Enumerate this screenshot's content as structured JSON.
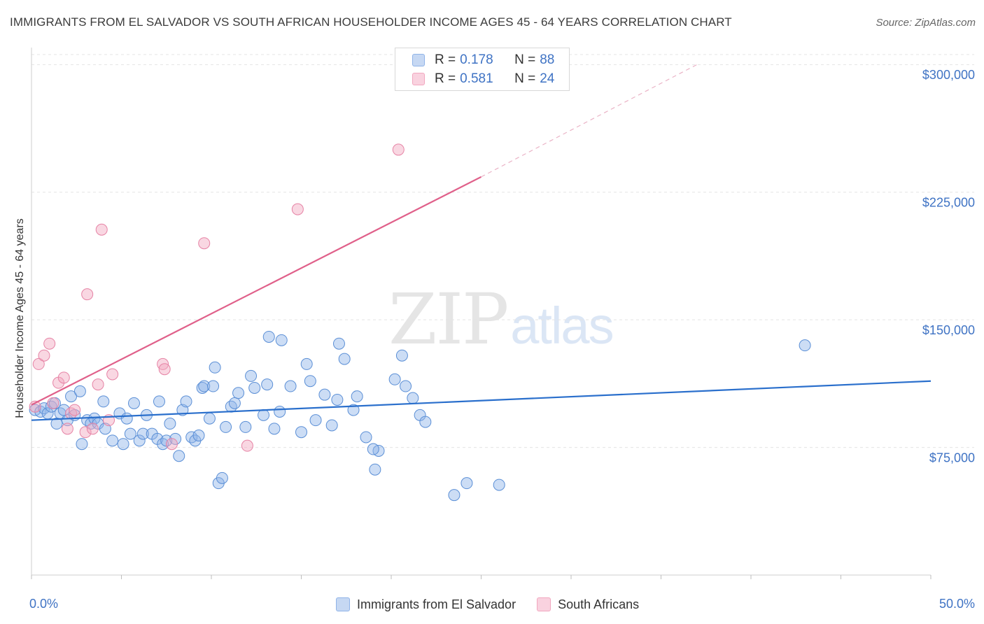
{
  "header": {
    "title": "IMMIGRANTS FROM EL SALVADOR VS SOUTH AFRICAN HOUSEHOLDER INCOME AGES 45 - 64 YEARS CORRELATION CHART",
    "source": "Source: ZipAtlas.com"
  },
  "watermark": {
    "zip": "ZIP",
    "atlas": "atlas"
  },
  "legend_top": [
    {
      "r_label": "R =",
      "r_value": "0.178",
      "n_label": "N =",
      "n_value": "88",
      "color": "#8fb3e8"
    },
    {
      "r_label": "R =",
      "r_value": "0.581",
      "n_label": "N =",
      "n_value": "24",
      "color": "#f2a7bf"
    }
  ],
  "chart_data": {
    "type": "scatter",
    "ylabel": "Householder Income Ages 45 - 64 years",
    "xlim": [
      0,
      50
    ],
    "ylim": [
      0,
      310000
    ],
    "y_ticks": [
      {
        "value": 75000,
        "label": "$75,000"
      },
      {
        "value": 150000,
        "label": "$150,000"
      },
      {
        "value": 225000,
        "label": "$225,000"
      },
      {
        "value": 300000,
        "label": "$300,000"
      }
    ],
    "x_tick_labels": {
      "min": "0.0%",
      "max": "50.0%"
    },
    "x_minor_ticks": [
      0,
      5,
      10,
      15,
      20,
      25,
      30,
      35,
      40,
      45,
      50
    ],
    "grid": "horizontal-dashed",
    "legend_position": "bottom",
    "series": [
      {
        "name": "Immigrants from El Salvador",
        "color": "#8fb3e8",
        "stroke": "#5b8fd6",
        "trend": {
          "x": [
            0,
            50
          ],
          "y": [
            91000,
            114000
          ],
          "color": "#2a6fcc"
        },
        "points": [
          [
            0.2,
            97000
          ],
          [
            0.5,
            96000
          ],
          [
            0.7,
            98000
          ],
          [
            0.9,
            95000
          ],
          [
            1.1,
            99000
          ],
          [
            1.3,
            101000
          ],
          [
            1.4,
            89000
          ],
          [
            1.6,
            95000
          ],
          [
            1.8,
            97000
          ],
          [
            2.0,
            91000
          ],
          [
            2.2,
            105000
          ],
          [
            2.4,
            94000
          ],
          [
            2.7,
            108000
          ],
          [
            2.8,
            77000
          ],
          [
            3.1,
            91000
          ],
          [
            3.3,
            89000
          ],
          [
            3.5,
            92000
          ],
          [
            3.7,
            89000
          ],
          [
            4.0,
            102000
          ],
          [
            4.1,
            86000
          ],
          [
            4.5,
            79000
          ],
          [
            4.9,
            95000
          ],
          [
            5.1,
            77000
          ],
          [
            5.3,
            92000
          ],
          [
            5.5,
            83000
          ],
          [
            5.7,
            101000
          ],
          [
            6.0,
            79000
          ],
          [
            6.2,
            83000
          ],
          [
            6.4,
            94000
          ],
          [
            6.7,
            83000
          ],
          [
            7.0,
            80000
          ],
          [
            7.1,
            102000
          ],
          [
            7.3,
            77000
          ],
          [
            7.5,
            79000
          ],
          [
            7.7,
            89000
          ],
          [
            8.0,
            80000
          ],
          [
            8.2,
            70000
          ],
          [
            8.4,
            97000
          ],
          [
            8.6,
            102000
          ],
          [
            8.9,
            81000
          ],
          [
            9.1,
            79000
          ],
          [
            9.3,
            82000
          ],
          [
            9.5,
            110000
          ],
          [
            9.6,
            111000
          ],
          [
            9.9,
            92000
          ],
          [
            10.1,
            111000
          ],
          [
            10.2,
            122000
          ],
          [
            10.4,
            54000
          ],
          [
            10.6,
            57000
          ],
          [
            10.8,
            87000
          ],
          [
            11.1,
            99000
          ],
          [
            11.3,
            101000
          ],
          [
            11.5,
            107000
          ],
          [
            11.9,
            87000
          ],
          [
            12.2,
            117000
          ],
          [
            12.4,
            110000
          ],
          [
            12.9,
            94000
          ],
          [
            13.1,
            112000
          ],
          [
            13.2,
            140000
          ],
          [
            13.5,
            86000
          ],
          [
            13.8,
            96000
          ],
          [
            13.9,
            138000
          ],
          [
            14.4,
            111000
          ],
          [
            15.0,
            84000
          ],
          [
            15.3,
            124000
          ],
          [
            15.5,
            114000
          ],
          [
            15.8,
            91000
          ],
          [
            16.3,
            106000
          ],
          [
            16.7,
            88000
          ],
          [
            17.0,
            103000
          ],
          [
            17.1,
            136000
          ],
          [
            17.4,
            127000
          ],
          [
            17.9,
            97000
          ],
          [
            18.1,
            105000
          ],
          [
            18.6,
            81000
          ],
          [
            19.3,
            73000
          ],
          [
            19.0,
            74000
          ],
          [
            19.1,
            62000
          ],
          [
            20.2,
            115000
          ],
          [
            20.6,
            129000
          ],
          [
            20.8,
            111000
          ],
          [
            21.2,
            104000
          ],
          [
            21.6,
            94000
          ],
          [
            21.9,
            90000
          ],
          [
            23.5,
            47000
          ],
          [
            24.2,
            54000
          ],
          [
            26.0,
            53000
          ],
          [
            43.0,
            135000
          ]
        ]
      },
      {
        "name": "South Africans",
        "color": "#f2a7bf",
        "stroke": "#e683a5",
        "trend": {
          "x": [
            0,
            25
          ],
          "y": [
            100000,
            234000
          ],
          "dashed_to": {
            "x": 37,
            "y": 300000
          },
          "color": "#e0608a"
        },
        "points": [
          [
            0.2,
            99000
          ],
          [
            0.4,
            124000
          ],
          [
            0.7,
            129000
          ],
          [
            1.0,
            136000
          ],
          [
            1.2,
            101000
          ],
          [
            1.5,
            113000
          ],
          [
            1.8,
            116000
          ],
          [
            2.0,
            86000
          ],
          [
            2.2,
            95000
          ],
          [
            2.4,
            97000
          ],
          [
            3.0,
            84000
          ],
          [
            3.1,
            165000
          ],
          [
            3.4,
            86000
          ],
          [
            3.7,
            112000
          ],
          [
            3.9,
            203000
          ],
          [
            4.3,
            91000
          ],
          [
            4.5,
            118000
          ],
          [
            7.3,
            124000
          ],
          [
            7.4,
            121000
          ],
          [
            7.8,
            77000
          ],
          [
            9.6,
            195000
          ],
          [
            12.0,
            76000
          ],
          [
            14.8,
            215000
          ],
          [
            20.4,
            250000
          ]
        ]
      }
    ]
  }
}
